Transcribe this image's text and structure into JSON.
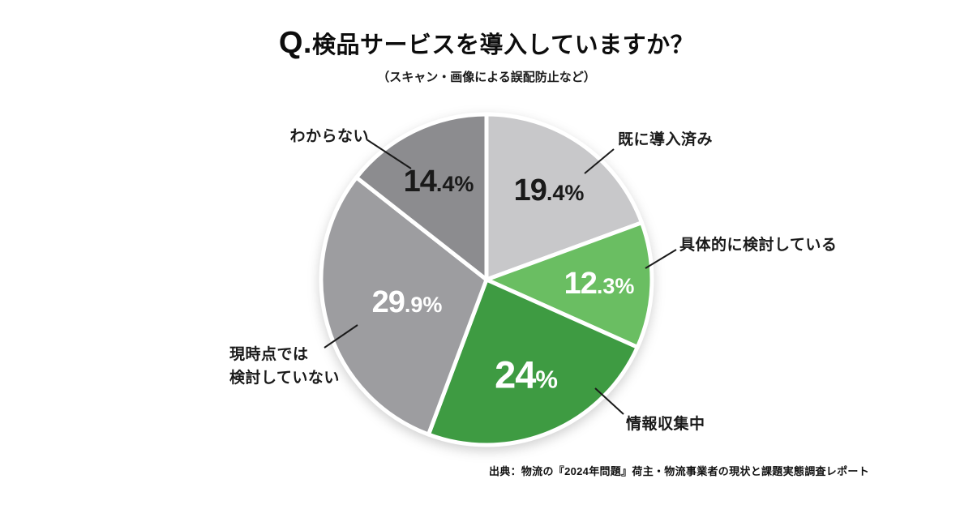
{
  "page": {
    "title_prefix": "Q.",
    "title": "検品サービスを導入していますか？",
    "subtitle": "（スキャン・画像による誤配防止など）",
    "source": "出典：物流の『2024年問題』荷主・物流事業者の現状と課題実態調査レポート"
  },
  "chart_data": {
    "type": "pie",
    "title": "Q.検品サービスを導入していますか？",
    "subtitle": "（スキャン・画像による誤配防止など）",
    "source": "出典：物流の『2024年問題』荷主・物流事業者の現状と課題実態調査レポート",
    "start_angle_deg": 0,
    "direction": "clockwise",
    "unit": "%",
    "legend": "none",
    "slices": [
      {
        "label": "既に導入済み",
        "value": 19.4,
        "display": "19.4%",
        "color": "#c8c8ca",
        "text_color": "#1a1a1a"
      },
      {
        "label": "具体的に検討している",
        "value": 12.3,
        "display": "12.3%",
        "color": "#6abe62",
        "text_color": "#ffffff"
      },
      {
        "label": "情報収集中",
        "value": 24,
        "display": "24%",
        "color": "#3e9b42",
        "text_color": "#ffffff"
      },
      {
        "label": "現時点では\n検討していない",
        "value": 29.9,
        "display": "29.9%",
        "color": "#9d9da0",
        "text_color": "#ffffff"
      },
      {
        "label": "わからない",
        "value": 14.4,
        "display": "14.4%",
        "color": "#8c8c8f",
        "text_color": "#1a1a1a"
      }
    ]
  }
}
